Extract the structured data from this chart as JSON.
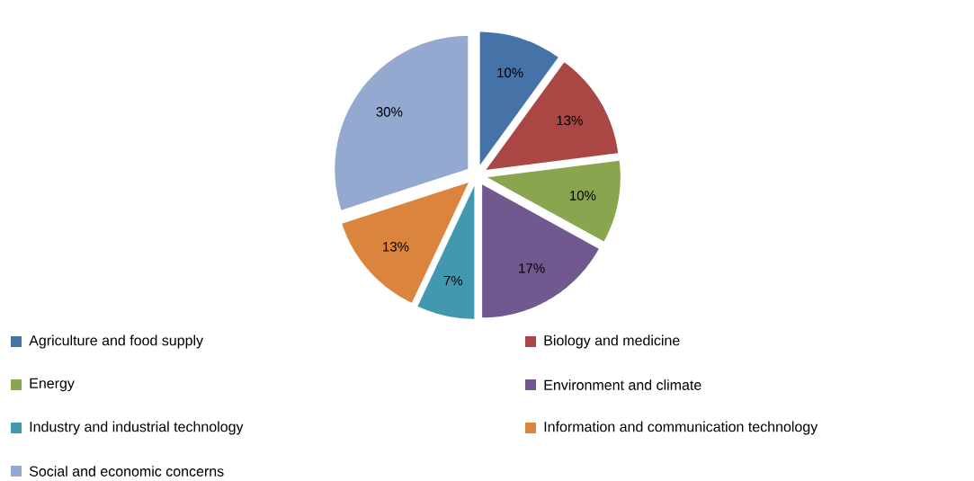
{
  "chart_data": {
    "type": "pie",
    "categories": [
      "Agriculture and food supply",
      "Biology and medicine",
      "Energy",
      "Environment and climate",
      "Industry and industrial technology",
      "Information and communication technology",
      "Social and economic concerns"
    ],
    "values": [
      10,
      13,
      10,
      17,
      7,
      13,
      30
    ],
    "value_labels": [
      "10%",
      "13%",
      "10%",
      "17%",
      "7%",
      "13%",
      "30%"
    ],
    "colors": [
      "#4572a7",
      "#aa4643",
      "#89a54e",
      "#71588f",
      "#4198af",
      "#db843d",
      "#93a9cf"
    ],
    "legend": "bottom"
  }
}
